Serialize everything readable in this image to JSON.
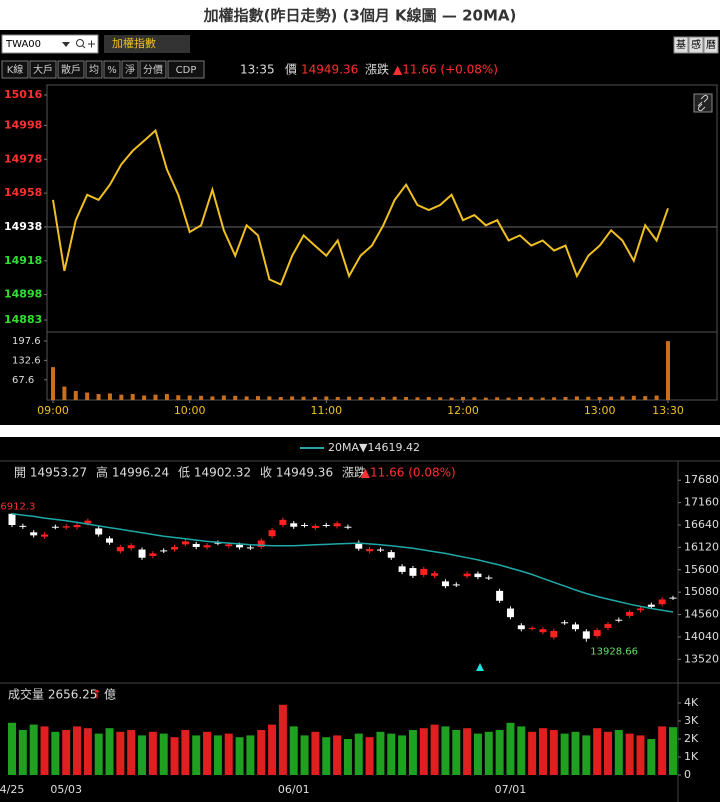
{
  "header": {
    "title": "加權指數(昨日走勢) (3個月 K線圖 — 20MA)"
  },
  "toolbar": {
    "symbol": "TWA00",
    "name": "加權指數",
    "right_buttons": [
      "基",
      "感",
      "曆"
    ],
    "buttons": [
      "K線",
      "大戶",
      "散戶",
      "均",
      "%",
      "淨",
      "分價",
      "CDP"
    ],
    "time": "13:35",
    "price_label": "價",
    "price": "14949.36",
    "change_label": "漲跌",
    "change": "▲11.66 (+0.08%)"
  },
  "quote": {
    "items": [
      "開 14953.27",
      "高 14996.24",
      "低 14902.32",
      "收 14949.36",
      "漲跌"
    ],
    "change": "▲11.66 (0.08%)",
    "volume_label": "成交量 2656.25",
    "volume_arrow": "↑",
    "volume_unit": "億"
  },
  "chart_data": [
    {
      "type": "line",
      "color": "#f0c020",
      "up_color": "#ff3030",
      "down_color": "#30e030",
      "reference": 14938,
      "x": [
        "09:00",
        "09:05",
        "09:10",
        "09:15",
        "09:20",
        "09:25",
        "09:30",
        "09:35",
        "09:40",
        "09:45",
        "09:50",
        "09:55",
        "10:00",
        "10:05",
        "10:10",
        "10:15",
        "10:20",
        "10:25",
        "10:30",
        "10:35",
        "10:40",
        "10:45",
        "10:50",
        "10:55",
        "11:00",
        "11:05",
        "11:10",
        "11:15",
        "11:20",
        "11:25",
        "11:30",
        "11:35",
        "11:40",
        "11:45",
        "11:50",
        "11:55",
        "12:00",
        "12:05",
        "12:10",
        "12:15",
        "12:20",
        "12:25",
        "12:30",
        "12:35",
        "12:40",
        "12:45",
        "12:50",
        "12:55",
        "13:00",
        "13:05",
        "13:10",
        "13:15",
        "13:20",
        "13:25",
        "13:30"
      ],
      "values": [
        14954,
        14912,
        14942,
        14957,
        14954,
        14963,
        14975,
        14983,
        14989,
        14995,
        14972,
        14957,
        14935,
        14939,
        14960,
        14936,
        14921,
        14939,
        14933,
        14907,
        14904,
        14921,
        14933,
        14927,
        14921,
        14930,
        14909,
        14921,
        14927,
        14939,
        14954,
        14963,
        14951,
        14948,
        14951,
        14957,
        14942,
        14945,
        14939,
        14942,
        14930,
        14933,
        14927,
        14930,
        14924,
        14927,
        14909,
        14921,
        14927,
        14936,
        14930,
        14918,
        14939,
        14930,
        14949
      ],
      "ylim": [
        14883,
        15016
      ],
      "yticks": [
        15016,
        14998,
        14978,
        14958,
        14938,
        14918,
        14898,
        14883
      ],
      "xticks": [
        "09:00",
        "10:00",
        "11:00",
        "12:00",
        "13:00",
        "13:30"
      ]
    },
    {
      "type": "bar",
      "color": "#c87020",
      "values": [
        110,
        45,
        30,
        25,
        20,
        22,
        18,
        20,
        15,
        18,
        20,
        16,
        15,
        14,
        12,
        15,
        14,
        12,
        13,
        12,
        10,
        12,
        11,
        10,
        12,
        10,
        11,
        10,
        9,
        10,
        11,
        10,
        9,
        10,
        9,
        8,
        10,
        9,
        8,
        9,
        8,
        10,
        9,
        8,
        9,
        10,
        12,
        11,
        10,
        11,
        12,
        14,
        13,
        15,
        197
      ],
      "ylim": [
        0,
        217.6
      ],
      "yticks": [
        197.6,
        132.6,
        67.6
      ]
    },
    {
      "type": "candlestick",
      "up_color": "#ff2020",
      "down_color": "#ffffff",
      "categories": [
        "4/25",
        null,
        null,
        null,
        null,
        "05/03",
        null,
        null,
        null,
        null,
        null,
        null,
        null,
        null,
        null,
        null,
        null,
        null,
        null,
        null,
        null,
        null,
        null,
        null,
        null,
        null,
        "06/01",
        null,
        null,
        null,
        null,
        null,
        null,
        null,
        null,
        null,
        null,
        null,
        null,
        null,
        null,
        null,
        null,
        null,
        null,
        null,
        "07/01",
        null,
        null,
        null,
        null,
        null,
        null,
        null,
        null,
        null,
        null,
        null,
        null,
        null,
        null,
        null
      ],
      "open": [
        16900,
        16620,
        16470,
        16370,
        16600,
        16580,
        16590,
        16680,
        16560,
        16330,
        16030,
        16100,
        16070,
        15920,
        16050,
        16070,
        16190,
        16200,
        16120,
        16230,
        16150,
        16180,
        16120,
        16130,
        16380,
        16640,
        16680,
        16640,
        16570,
        16640,
        16610,
        16600,
        16230,
        16030,
        16070,
        16010,
        15680,
        15640,
        15480,
        15460,
        15330,
        15260,
        15450,
        15510,
        15420,
        15110,
        14700,
        14310,
        14240,
        14150,
        14030,
        14380,
        14330,
        14170,
        14060,
        14250,
        14440,
        14530,
        14660,
        14790,
        14800,
        14953.27
      ],
      "high": [
        16912.3,
        16670,
        16520,
        16470,
        16650,
        16660,
        16690,
        16790,
        16610,
        16380,
        16180,
        16220,
        16120,
        16030,
        16100,
        16180,
        16310,
        16250,
        16220,
        16280,
        16240,
        16230,
        16170,
        16330,
        16570,
        16810,
        16730,
        16690,
        16670,
        16690,
        16730,
        16650,
        16280,
        16130,
        16120,
        16060,
        15730,
        15690,
        15670,
        15570,
        15380,
        15310,
        15560,
        15560,
        15470,
        15160,
        14750,
        14360,
        14290,
        14270,
        14230,
        14430,
        14380,
        14220,
        14250,
        14390,
        14490,
        14670,
        14750,
        14840,
        14960,
        14996.24
      ],
      "low": [
        16590,
        16550,
        16350,
        16320,
        16540,
        16530,
        16540,
        16630,
        16370,
        16180,
        15980,
        16050,
        15830,
        15870,
        15990,
        16020,
        16140,
        16080,
        16070,
        16170,
        16100,
        16070,
        16060,
        16080,
        16330,
        16590,
        16550,
        16580,
        16520,
        16580,
        16560,
        16540,
        16040,
        15980,
        16010,
        15830,
        15500,
        15410,
        15430,
        15410,
        15170,
        15200,
        15400,
        15380,
        15360,
        14830,
        14450,
        14170,
        14190,
        14100,
        13980,
        14320,
        14170,
        13928.66,
        14010,
        14200,
        14380,
        14480,
        14610,
        14690,
        14750,
        14902.32
      ],
      "close": [
        16640,
        16600,
        16400,
        16420,
        16590,
        16610,
        16640,
        16740,
        16420,
        16230,
        16130,
        16170,
        15880,
        15980,
        16040,
        16130,
        16260,
        16130,
        16170,
        16220,
        16190,
        16120,
        16110,
        16280,
        16520,
        16760,
        16600,
        16630,
        16620,
        16630,
        16680,
        16590,
        16090,
        16080,
        16060,
        15880,
        15550,
        15460,
        15620,
        15520,
        15220,
        15250,
        15510,
        15430,
        15410,
        14880,
        14500,
        14220,
        14250,
        14220,
        14180,
        14370,
        14220,
        14000,
        14200,
        14340,
        14430,
        14620,
        14700,
        14740,
        14910,
        14949.36
      ],
      "high_label": "16912.3",
      "low_label": "13928.66",
      "series": [
        {
          "name": "20MA",
          "color": "#20a8a8",
          "value_label": "▼14619.42",
          "values": [
            16900,
            16870,
            16840,
            16800,
            16770,
            16740,
            16700,
            16660,
            16620,
            16580,
            16540,
            16500,
            16460,
            16420,
            16380,
            16350,
            16320,
            16290,
            16260,
            16240,
            16220,
            16200,
            16180,
            16170,
            16160,
            16160,
            16160,
            16170,
            16180,
            16190,
            16200,
            16210,
            16220,
            16200,
            16180,
            16160,
            16130,
            16100,
            16060,
            16020,
            15980,
            15930,
            15880,
            15830,
            15770,
            15710,
            15640,
            15570,
            15490,
            15400,
            15310,
            15220,
            15130,
            15050,
            14980,
            14920,
            14860,
            14800,
            14750,
            14700,
            14660,
            14619.42
          ]
        }
      ],
      "ylim": [
        13040,
        18080
      ],
      "yticks": [
        17680,
        17160,
        16640,
        16120,
        15600,
        15080,
        14560,
        14040,
        13520
      ]
    },
    {
      "type": "bar",
      "up_color": "#e02020",
      "down_color": "#20a020",
      "values": [
        2900,
        2500,
        2800,
        2700,
        2400,
        2500,
        2700,
        2600,
        2300,
        2600,
        2400,
        2500,
        2200,
        2400,
        2300,
        2100,
        2500,
        2200,
        2400,
        2200,
        2300,
        2100,
        2200,
        2500,
        2800,
        3900,
        2700,
        2200,
        2400,
        2100,
        2200,
        2000,
        2300,
        2100,
        2400,
        2300,
        2200,
        2500,
        2600,
        2800,
        2700,
        2500,
        2600,
        2300,
        2400,
        2500,
        2900,
        2700,
        2400,
        2600,
        2500,
        2300,
        2400,
        2200,
        2600,
        2400,
        2500,
        2300,
        2200,
        2000,
        2700,
        2656.25
      ],
      "ylim": [
        0,
        4000
      ],
      "yticks": [
        {
          "value": 4000,
          "label": "4K"
        },
        {
          "value": 3000,
          "label": "3K"
        },
        {
          "value": 2000,
          "label": "2K"
        },
        {
          "value": 1000,
          "label": "1K"
        },
        0
      ]
    }
  ]
}
